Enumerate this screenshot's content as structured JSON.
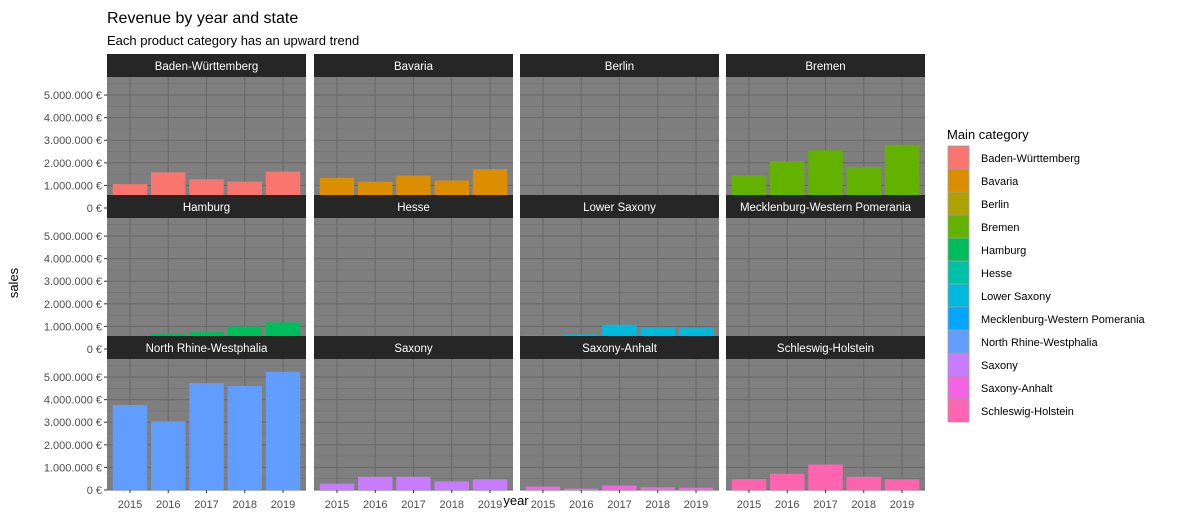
{
  "chart_data": {
    "type": "bar",
    "title": "Revenue by year and state",
    "subtitle": "Each product category has an upward trend",
    "xlabel": "year",
    "ylabel": "sales",
    "categories": [
      "2015",
      "2016",
      "2017",
      "2018",
      "2019"
    ],
    "ylim": [
      0,
      5800000
    ],
    "yticks": [
      0,
      1000000,
      2000000,
      3000000,
      4000000,
      5000000
    ],
    "ytick_labels": [
      "0 €",
      "1.000.000 €",
      "2.000.000 €",
      "3.000.000 €",
      "4.000.000 €",
      "5.000.000 €"
    ],
    "grid": true,
    "legend": {
      "title": "Main category",
      "position": "right"
    },
    "facet_layout": "4 columns x 3 rows",
    "series": [
      {
        "name": "Baden-Württemberg",
        "color": "#F8766D",
        "values": [
          1060000,
          1580000,
          1270000,
          1170000,
          1610000
        ]
      },
      {
        "name": "Bavaria",
        "color": "#DB8E00",
        "values": [
          1340000,
          1160000,
          1430000,
          1220000,
          1720000
        ]
      },
      {
        "name": "Berlin",
        "color": "#AEA200",
        "values": [
          110000,
          110000,
          470000,
          310000,
          220000
        ]
      },
      {
        "name": "Bremen",
        "color": "#64B200",
        "values": [
          1450000,
          2080000,
          2560000,
          1820000,
          2800000
        ]
      },
      {
        "name": "Hamburg",
        "color": "#00BD5C",
        "values": [
          450000,
          680000,
          760000,
          1000000,
          1180000
        ]
      },
      {
        "name": "Hesse",
        "color": "#00C1A7",
        "values": [
          350000,
          260000,
          350000,
          350000,
          370000
        ]
      },
      {
        "name": "Lower Saxony",
        "color": "#00BADE",
        "values": [
          620000,
          650000,
          1080000,
          960000,
          940000
        ]
      },
      {
        "name": "Mecklenburg-Western Pomerania",
        "color": "#00A6FF",
        "values": [
          230000,
          60000,
          200000,
          0,
          120000
        ]
      },
      {
        "name": "North Rhine-Westphalia",
        "color": "#619CFF",
        "values": [
          3760000,
          3040000,
          4730000,
          4610000,
          5230000
        ]
      },
      {
        "name": "Saxony",
        "color": "#C77CFF",
        "values": [
          280000,
          590000,
          590000,
          380000,
          470000
        ]
      },
      {
        "name": "Saxony-Anhalt",
        "color": "#F564E3",
        "values": [
          150000,
          60000,
          200000,
          120000,
          100000
        ]
      },
      {
        "name": "Schleswig-Holstein",
        "color": "#FF64B0",
        "values": [
          480000,
          720000,
          1130000,
          590000,
          470000
        ]
      }
    ]
  }
}
